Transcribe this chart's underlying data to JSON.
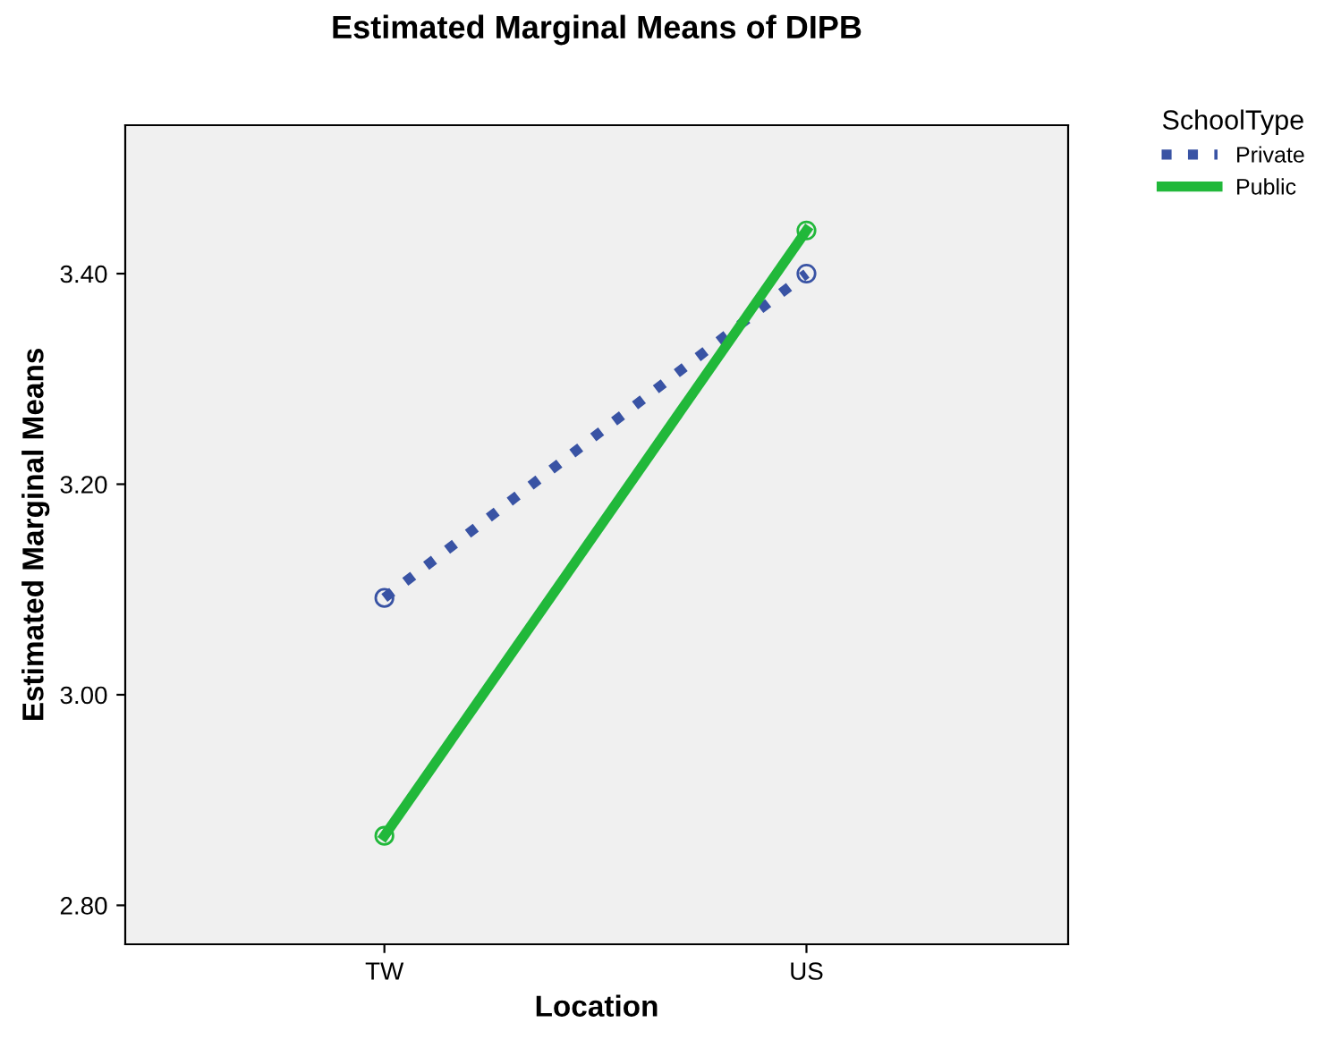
{
  "chart_data": {
    "type": "line",
    "title": "Estimated Marginal Means of DIPB",
    "xlabel": "Location",
    "ylabel": "Estimated Marginal Means",
    "legend_title": "SchoolType",
    "categories": [
      "TW",
      "US"
    ],
    "series": [
      {
        "name": "Private",
        "color": "#3953a4",
        "values": [
          3.092,
          3.4
        ],
        "line_style": "dotted"
      },
      {
        "name": "Public",
        "color": "#21b83a",
        "values": [
          2.866,
          3.441
        ],
        "line_style": "solid"
      }
    ],
    "ylim": [
      2.763,
      3.541
    ],
    "yticks": [
      {
        "value": 2.8,
        "label": "2.80"
      },
      {
        "value": 3.0,
        "label": "3.00"
      },
      {
        "value": 3.2,
        "label": "3.20"
      },
      {
        "value": 3.4,
        "label": "3.40"
      }
    ],
    "grid": false,
    "legend": "top right",
    "marker": "circle"
  }
}
